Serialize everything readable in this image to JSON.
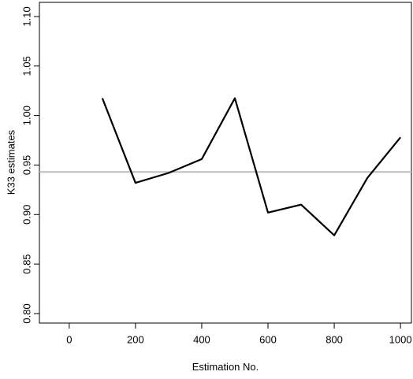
{
  "chart_data": {
    "type": "line",
    "x_label": "Estimation No.",
    "y_label": "K33 estimates",
    "x": [
      100,
      200,
      300,
      400,
      500,
      600,
      700,
      800,
      900,
      1000
    ],
    "series": [
      {
        "color": "#000000",
        "values": [
          1.0175,
          0.932,
          0.942,
          0.956,
          1.0175,
          0.902,
          0.91,
          0.879,
          0.937,
          0.978
        ]
      }
    ],
    "reference_line": {
      "value": 0.943,
      "color": "#bebebe"
    },
    "xlim": [
      -90,
      1033
    ],
    "xticks": [
      0,
      200,
      400,
      600,
      800,
      1000
    ],
    "ylim": [
      0.7904,
      1.1143
    ],
    "yticks": [
      {
        "value": 0.8,
        "label": "0.80"
      },
      {
        "value": 0.85,
        "label": "0.85"
      },
      {
        "value": 0.9,
        "label": "0.90"
      },
      {
        "value": 0.95,
        "label": "0.95"
      },
      {
        "value": 1.0,
        "label": "1.00"
      },
      {
        "value": 1.05,
        "label": "1.05"
      },
      {
        "value": 1.1,
        "label": "1.10"
      }
    ]
  }
}
